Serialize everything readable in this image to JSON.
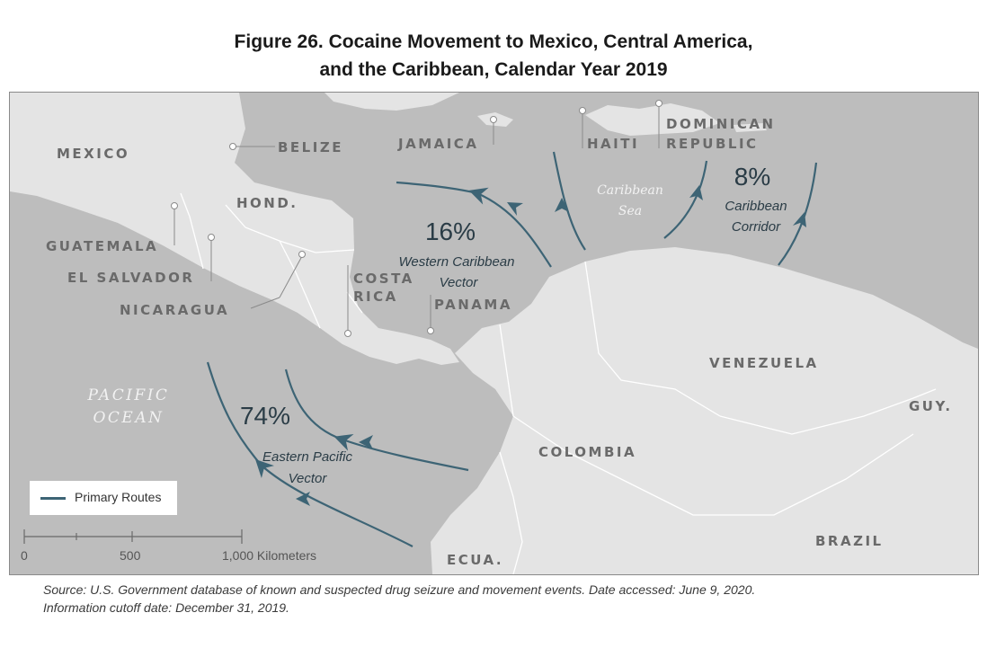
{
  "title_line1": "Figure 26. Cocaine Movement to Mexico, Central America,",
  "title_line2": "and the Caribbean, Calendar Year 2019",
  "countries": {
    "mexico": "MEXICO",
    "belize": "BELIZE",
    "guatemala": "GUATEMALA",
    "el_salvador": "EL SALVADOR",
    "honduras": "HOND.",
    "nicaragua": "NICARAGUA",
    "costa_rica_1": "COSTA",
    "costa_rica_2": "RICA",
    "panama": "PANAMA",
    "jamaica": "JAMAICA",
    "haiti": "HAITI",
    "dominican_1": "DOMINICAN",
    "dominican_2": "REPUBLIC",
    "venezuela": "VENEZUELA",
    "colombia": "COLOMBIA",
    "ecuador": "ECUA.",
    "brazil": "BRAZIL",
    "guyana": "GUY."
  },
  "water": {
    "pacific_1": "PACIFIC",
    "pacific_2": "OCEAN",
    "caribbean_1": "Caribbean",
    "caribbean_2": "Sea"
  },
  "vectors": {
    "western_pct": "16%",
    "western_1": "Western Caribbean",
    "western_2": "Vector",
    "eastern_pct": "74%",
    "eastern_1": "Eastern Pacific",
    "eastern_2": "Vector",
    "caribbean_pct": "8%",
    "caribbean_1": "Caribbean",
    "caribbean_2": "Corridor"
  },
  "legend": {
    "label": "Primary Routes"
  },
  "scale": {
    "tick_0": "0",
    "tick_500": "500",
    "tick_1000": "1,000  Kilometers"
  },
  "source_line1": "Source: U.S. Government database of known and suspected drug seizure and movement events. Date accessed: June 9, 2020.",
  "source_line2": "Information cutoff date: December 31, 2019.",
  "colors": {
    "land": "#e4e4e4",
    "water": "#bdbdbd",
    "route": "#3d6475",
    "label": "#6a6a6a"
  }
}
